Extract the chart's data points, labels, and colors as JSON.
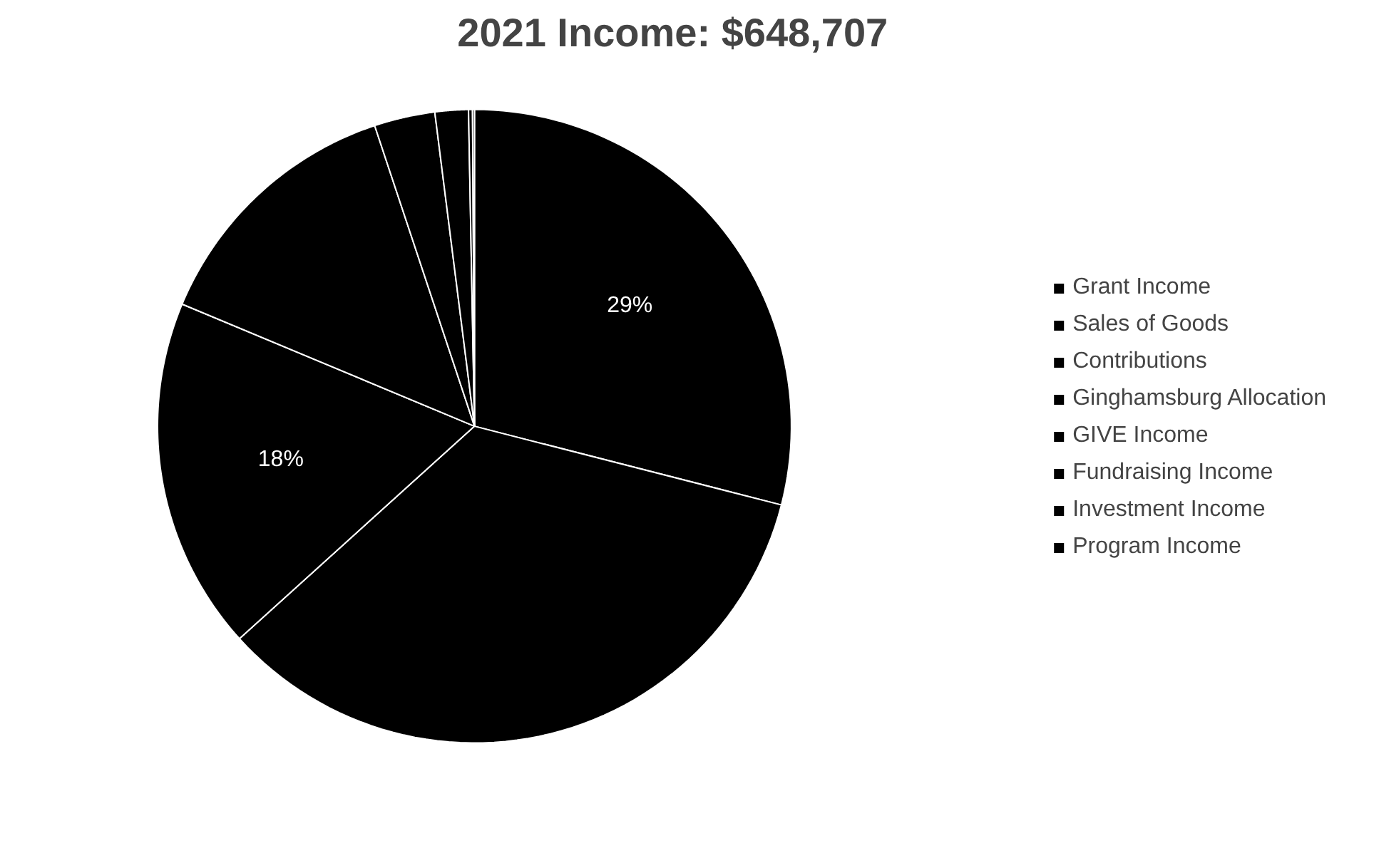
{
  "chart_data": {
    "type": "pie",
    "title": "2021 Income:  $648,707",
    "categories": [
      "Grant Income",
      "Sales of Goods",
      "Contributions",
      "Ginghamsburg Allocation",
      "GIVE Income",
      "Fundraising Income",
      "Investment Income",
      "Program Income"
    ],
    "values": [
      29,
      34.3,
      18,
      13.6,
      3.1,
      1.7,
      0.2,
      0.1
    ],
    "colors": [
      "#000000",
      "#000000",
      "#000000",
      "#000000",
      "#000000",
      "#000000",
      "#000000",
      "#000000"
    ],
    "value_labels": [
      "29%",
      null,
      "18%",
      null,
      null,
      null,
      null,
      null
    ],
    "legend": "right"
  }
}
